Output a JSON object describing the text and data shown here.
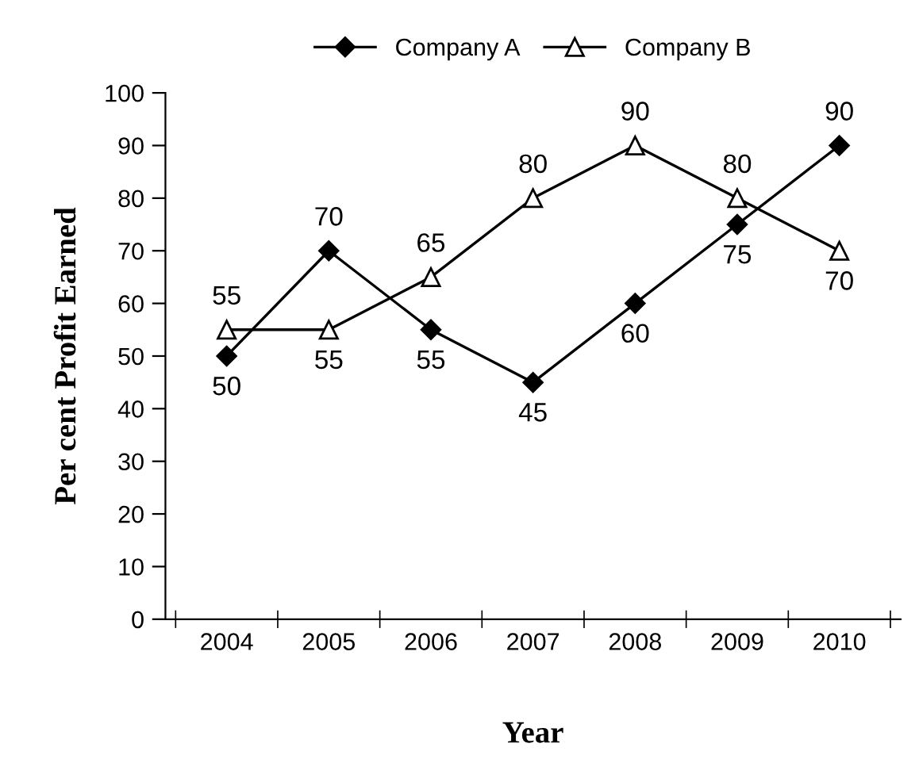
{
  "chart_data": {
    "type": "line",
    "xlabel": "Year",
    "ylabel": "Per cent Profit Earned",
    "categories": [
      "2004",
      "2005",
      "2006",
      "2007",
      "2008",
      "2009",
      "2010"
    ],
    "series": [
      {
        "name": "Company A",
        "color": "#000000",
        "marker": "diamond",
        "values": [
          50,
          70,
          55,
          45,
          60,
          75,
          90
        ]
      },
      {
        "name": "Company B",
        "color": "#000000",
        "marker": "triangle",
        "values": [
          55,
          55,
          65,
          80,
          90,
          80,
          70
        ]
      }
    ],
    "ylim": [
      0,
      100
    ],
    "yticks": [
      0,
      10,
      20,
      30,
      40,
      50,
      60,
      70,
      80,
      90,
      100
    ],
    "grid": false,
    "legend": "top",
    "data_labels": true,
    "line_style": "solid"
  }
}
